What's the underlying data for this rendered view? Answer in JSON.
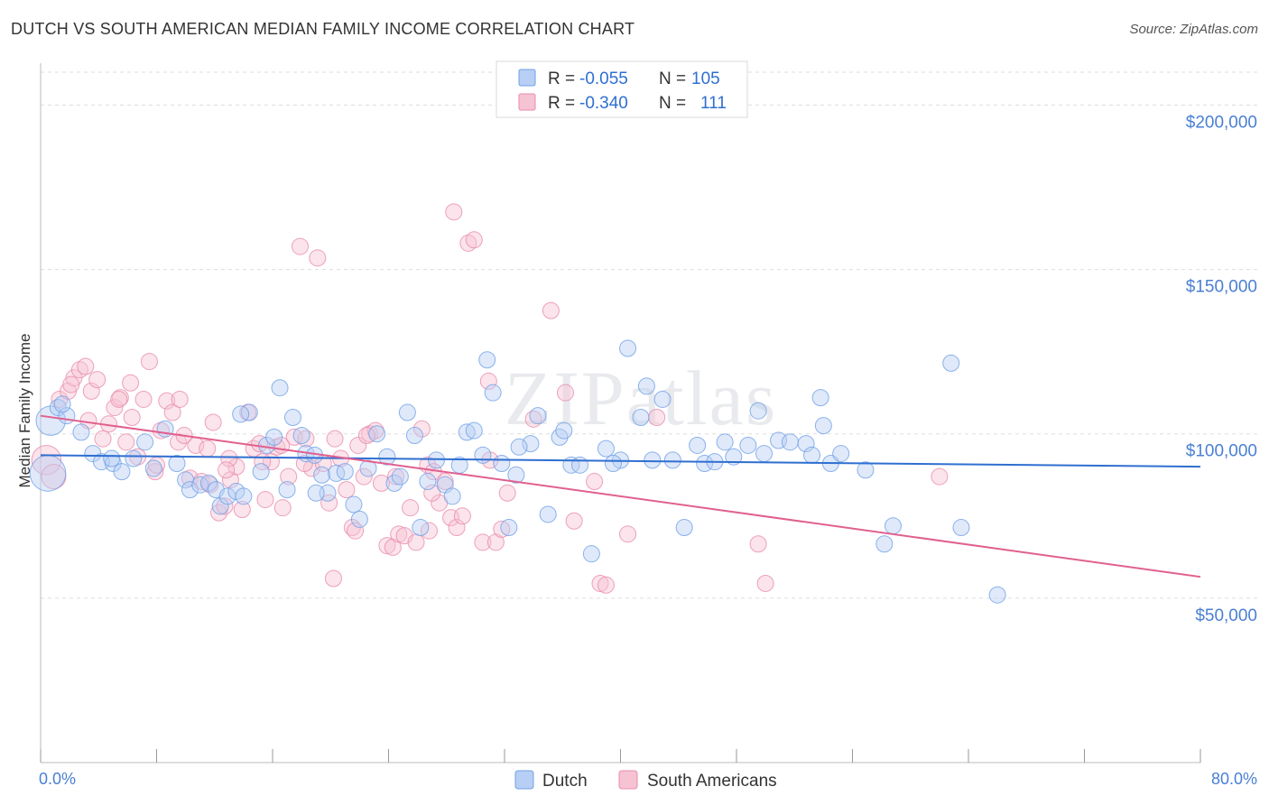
{
  "title": "DUTCH VS SOUTH AMERICAN MEDIAN FAMILY INCOME CORRELATION CHART",
  "source": "Source: ZipAtlas.com",
  "watermark": "ZIPatlas",
  "colors": {
    "dutch": "#6fa0e6",
    "dutch_fill": "#b7cff4",
    "dutch_line": "#2f6fd0",
    "south": "#e98bac",
    "south_fill": "#f6c3d3",
    "south_line": "#e0608f",
    "tick_text": "#4a7fd4",
    "grid": "#dddddd"
  },
  "legend": {
    "rows": [
      {
        "r_label": "R = ",
        "r_value": "-0.055",
        "n_label": "N = ",
        "n_value": "105"
      },
      {
        "r_label": "R = ",
        "r_value": "-0.340",
        "n_label": "N = ",
        "n_value": "111"
      }
    ]
  },
  "bottom_legend": [
    "Dutch",
    "South Americans"
  ],
  "chart_data": {
    "type": "scatter",
    "ylabel": "Median Family Income",
    "xlabel": "",
    "xlim": [
      0,
      80
    ],
    "ylim": [
      0,
      210000
    ],
    "x_tick_labels": [
      "0.0%",
      "80.0%"
    ],
    "y_ticks": [
      {
        "value": 200000,
        "label": "$200,000"
      },
      {
        "value": 150000,
        "label": "$150,000"
      },
      {
        "value": 100000,
        "label": "$100,000"
      },
      {
        "value": 50000,
        "label": "$50,000"
      }
    ],
    "series": [
      {
        "name": "Dutch",
        "r": -0.055,
        "n": 105,
        "trend": {
          "x": [
            0,
            80
          ],
          "y": [
            93500,
            90000
          ]
        },
        "points": [
          [
            0.5,
            88000,
            2.2
          ],
          [
            0.7,
            104000,
            1.8
          ],
          [
            1.2,
            108000,
            1
          ],
          [
            1.8,
            105500,
            1
          ],
          [
            2.8,
            100500,
            1
          ],
          [
            3.6,
            94000,
            1
          ],
          [
            4.2,
            91500,
            1
          ],
          [
            5.0,
            91000,
            1
          ],
          [
            5.6,
            88500,
            1
          ],
          [
            6.4,
            92500,
            1
          ],
          [
            7.2,
            97500,
            1
          ],
          [
            7.8,
            89500,
            1
          ],
          [
            8.6,
            101500,
            1
          ],
          [
            9.4,
            91000,
            1
          ],
          [
            10.0,
            86000,
            1
          ],
          [
            10.3,
            83000,
            1
          ],
          [
            11.0,
            84500,
            1
          ],
          [
            11.6,
            85000,
            1
          ],
          [
            12.1,
            83000,
            1
          ],
          [
            12.4,
            78000,
            1
          ],
          [
            12.9,
            81000,
            1
          ],
          [
            13.5,
            82500,
            1
          ],
          [
            14.0,
            81000,
            1
          ],
          [
            14.4,
            106500,
            1
          ],
          [
            15.2,
            88500,
            1
          ],
          [
            15.6,
            96500,
            1
          ],
          [
            16.1,
            99000,
            1
          ],
          [
            16.5,
            114000,
            1
          ],
          [
            17.0,
            83000,
            1
          ],
          [
            17.4,
            105000,
            1
          ],
          [
            18.0,
            99500,
            1
          ],
          [
            18.3,
            94000,
            1
          ],
          [
            18.9,
            93500,
            1
          ],
          [
            19.4,
            87500,
            1
          ],
          [
            19.8,
            82000,
            1
          ],
          [
            20.4,
            88000,
            1
          ],
          [
            21.0,
            88500,
            1
          ],
          [
            21.6,
            78500,
            1
          ],
          [
            22.0,
            74000,
            1
          ],
          [
            22.6,
            89500,
            1
          ],
          [
            23.2,
            100000,
            1
          ],
          [
            23.9,
            93000,
            1
          ],
          [
            24.4,
            85000,
            1
          ],
          [
            24.8,
            87000,
            1
          ],
          [
            25.3,
            106500,
            1
          ],
          [
            25.8,
            99500,
            1
          ],
          [
            26.2,
            71500,
            1
          ],
          [
            26.7,
            85500,
            1
          ],
          [
            27.3,
            92000,
            1
          ],
          [
            27.9,
            84500,
            1
          ],
          [
            28.4,
            81000,
            1
          ],
          [
            28.9,
            90500,
            1
          ],
          [
            29.4,
            100500,
            1
          ],
          [
            29.9,
            101000,
            1
          ],
          [
            30.5,
            93500,
            1
          ],
          [
            30.8,
            122500,
            1
          ],
          [
            31.2,
            112500,
            1
          ],
          [
            31.8,
            91000,
            1
          ],
          [
            32.3,
            71500,
            1
          ],
          [
            32.8,
            87500,
            1
          ],
          [
            33.8,
            97000,
            1
          ],
          [
            34.3,
            105500,
            1
          ],
          [
            35.0,
            75500,
            1
          ],
          [
            35.8,
            99000,
            1
          ],
          [
            36.1,
            101000,
            1
          ],
          [
            36.6,
            90500,
            1
          ],
          [
            37.2,
            90500,
            1
          ],
          [
            38.0,
            63500,
            1
          ],
          [
            39.0,
            95500,
            1
          ],
          [
            40.0,
            92000,
            1
          ],
          [
            40.5,
            126000,
            1
          ],
          [
            41.4,
            105000,
            1
          ],
          [
            41.8,
            114500,
            1
          ],
          [
            42.2,
            92000,
            1
          ],
          [
            42.9,
            110500,
            1
          ],
          [
            43.6,
            92000,
            1
          ],
          [
            44.4,
            71500,
            1
          ],
          [
            45.3,
            96500,
            1
          ],
          [
            45.8,
            91000,
            1
          ],
          [
            46.5,
            91500,
            1
          ],
          [
            47.2,
            97500,
            1
          ],
          [
            47.8,
            93000,
            1
          ],
          [
            48.8,
            96500,
            1
          ],
          [
            49.5,
            107000,
            1
          ],
          [
            49.9,
            94000,
            1
          ],
          [
            50.9,
            98000,
            1
          ],
          [
            51.7,
            97500,
            1
          ],
          [
            52.8,
            97000,
            1
          ],
          [
            53.2,
            93500,
            1
          ],
          [
            53.8,
            111000,
            1
          ],
          [
            54.0,
            102500,
            1
          ],
          [
            54.5,
            91000,
            1
          ],
          [
            55.2,
            94000,
            1
          ],
          [
            56.9,
            89000,
            1
          ],
          [
            58.2,
            66500,
            1
          ],
          [
            58.8,
            72000,
            1
          ],
          [
            62.8,
            121500,
            1
          ],
          [
            63.5,
            71500,
            1
          ],
          [
            66.0,
            51000,
            1
          ],
          [
            1.5,
            109000,
            1
          ],
          [
            4.9,
            92500,
            1
          ],
          [
            13.8,
            106000,
            1
          ],
          [
            19.0,
            82000,
            1
          ],
          [
            33.0,
            96000,
            1
          ],
          [
            39.5,
            91000,
            1
          ]
        ]
      },
      {
        "name": "South Americans",
        "r": -0.34,
        "n": 111,
        "trend": {
          "x": [
            0,
            80
          ],
          "y": [
            105500,
            56500
          ]
        },
        "points": [
          [
            0.4,
            92000,
            1.8
          ],
          [
            0.9,
            87000,
            1.5
          ],
          [
            1.3,
            110500,
            1
          ],
          [
            1.9,
            113000,
            1
          ],
          [
            2.3,
            117000,
            1
          ],
          [
            2.7,
            119500,
            1
          ],
          [
            3.1,
            120500,
            1
          ],
          [
            3.5,
            113000,
            1
          ],
          [
            3.9,
            116500,
            1
          ],
          [
            4.3,
            98500,
            1
          ],
          [
            4.7,
            103000,
            1
          ],
          [
            5.1,
            108000,
            1
          ],
          [
            5.5,
            111000,
            1
          ],
          [
            5.9,
            97500,
            1
          ],
          [
            6.3,
            105000,
            1
          ],
          [
            6.7,
            93000,
            1
          ],
          [
            7.1,
            110500,
            1
          ],
          [
            7.5,
            122000,
            1
          ],
          [
            7.9,
            88500,
            1
          ],
          [
            8.3,
            101000,
            1
          ],
          [
            8.7,
            110000,
            1
          ],
          [
            9.1,
            106500,
            1
          ],
          [
            9.5,
            97500,
            1
          ],
          [
            9.9,
            99500,
            1
          ],
          [
            10.3,
            86500,
            1
          ],
          [
            10.7,
            96500,
            1
          ],
          [
            11.1,
            85500,
            1
          ],
          [
            11.5,
            95500,
            1
          ],
          [
            11.9,
            103500,
            1
          ],
          [
            12.3,
            76000,
            1
          ],
          [
            12.7,
            78000,
            1
          ],
          [
            13.1,
            86000,
            1
          ],
          [
            13.5,
            90000,
            1
          ],
          [
            13.9,
            77000,
            1
          ],
          [
            14.3,
            106500,
            1
          ],
          [
            14.7,
            95500,
            1
          ],
          [
            15.1,
            97000,
            1
          ],
          [
            15.5,
            80000,
            1
          ],
          [
            15.9,
            91500,
            1
          ],
          [
            16.3,
            96000,
            1
          ],
          [
            16.7,
            77500,
            1
          ],
          [
            17.1,
            87000,
            1
          ],
          [
            17.5,
            99000,
            1
          ],
          [
            17.9,
            157000,
            1
          ],
          [
            18.3,
            98500,
            1
          ],
          [
            18.7,
            89500,
            1
          ],
          [
            19.1,
            153500,
            1
          ],
          [
            19.5,
            91000,
            1
          ],
          [
            19.9,
            79000,
            1
          ],
          [
            20.3,
            98500,
            1
          ],
          [
            20.7,
            92500,
            1
          ],
          [
            21.1,
            83000,
            1
          ],
          [
            21.5,
            71500,
            1
          ],
          [
            21.9,
            96500,
            1
          ],
          [
            22.3,
            87000,
            1
          ],
          [
            22.7,
            100000,
            1
          ],
          [
            23.1,
            101000,
            1
          ],
          [
            23.5,
            85000,
            1
          ],
          [
            23.9,
            66000,
            1
          ],
          [
            24.3,
            65500,
            1
          ],
          [
            24.7,
            69500,
            1
          ],
          [
            25.1,
            69000,
            1
          ],
          [
            25.5,
            77500,
            1
          ],
          [
            25.9,
            67000,
            1
          ],
          [
            26.3,
            101500,
            1
          ],
          [
            26.7,
            90500,
            1
          ],
          [
            27.1,
            88500,
            1
          ],
          [
            27.5,
            79000,
            1
          ],
          [
            27.9,
            85500,
            1
          ],
          [
            28.3,
            74500,
            1
          ],
          [
            28.7,
            71500,
            1
          ],
          [
            29.1,
            75000,
            1
          ],
          [
            29.5,
            158000,
            1
          ],
          [
            29.9,
            159000,
            1
          ],
          [
            28.5,
            167500,
            1
          ],
          [
            30.5,
            67000,
            1
          ],
          [
            31.0,
            92000,
            1
          ],
          [
            31.4,
            67000,
            1
          ],
          [
            31.8,
            71000,
            1
          ],
          [
            32.2,
            82000,
            1
          ],
          [
            34.0,
            104500,
            1
          ],
          [
            35.2,
            137500,
            1
          ],
          [
            36.2,
            112500,
            1
          ],
          [
            36.8,
            73500,
            1
          ],
          [
            38.2,
            85500,
            1
          ],
          [
            38.6,
            54500,
            1
          ],
          [
            39.0,
            54000,
            1
          ],
          [
            40.5,
            69500,
            1
          ],
          [
            42.5,
            105000,
            1
          ],
          [
            49.5,
            66500,
            1
          ],
          [
            50.0,
            54500,
            1
          ],
          [
            62.0,
            87000,
            1
          ],
          [
            20.2,
            56000,
            1
          ],
          [
            21.7,
            70500,
            1
          ],
          [
            16.6,
            96500,
            1
          ],
          [
            22.5,
            99500,
            1
          ],
          [
            26.8,
            70500,
            1
          ],
          [
            30.9,
            116000,
            1
          ],
          [
            11.7,
            84500,
            1
          ],
          [
            8.0,
            90500,
            1
          ],
          [
            13.0,
            92500,
            1
          ],
          [
            6.2,
            115500,
            1
          ],
          [
            2.1,
            115000,
            1
          ],
          [
            5.4,
            110500,
            1
          ],
          [
            15.3,
            91500,
            1
          ],
          [
            18.2,
            91000,
            1
          ],
          [
            24.5,
            87000,
            1
          ],
          [
            27.0,
            82000,
            1
          ],
          [
            9.6,
            110500,
            1
          ],
          [
            12.8,
            89000,
            1
          ],
          [
            3.3,
            104000,
            1
          ]
        ]
      }
    ]
  }
}
